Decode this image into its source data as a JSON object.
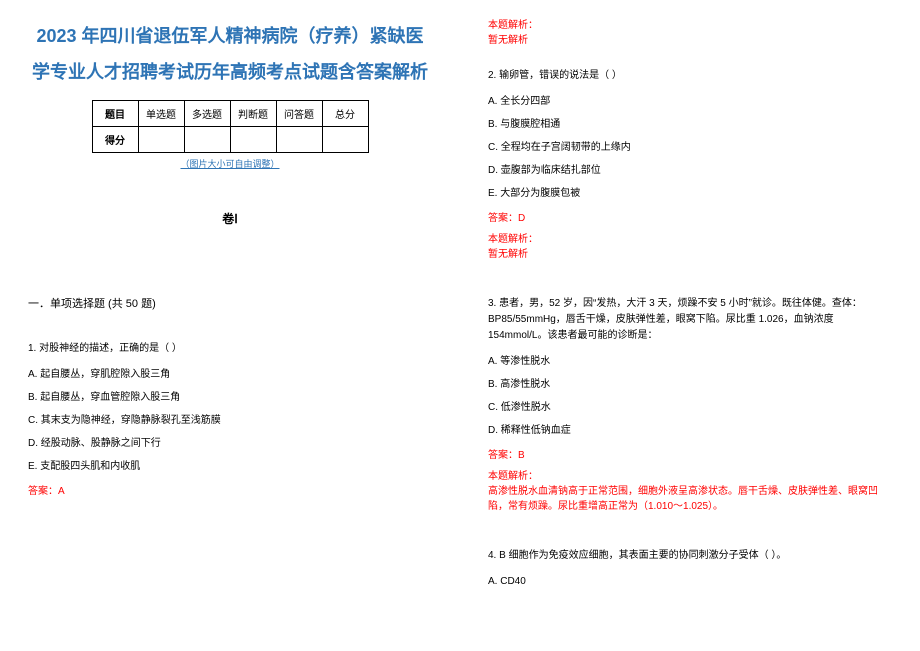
{
  "doc": {
    "title": "2023 年四川省退伍军人精神病院（疗养）紧缺医学专业人才招聘考试历年高频考点试题含答案解析",
    "score_table": {
      "headers": [
        "题目",
        "单选题",
        "多选题",
        "判断题",
        "问答题",
        "总分"
      ],
      "row_label": "得分"
    },
    "img_note": "（图片大小可自由调整）",
    "juan": "卷Ⅰ",
    "section1": "一．单项选择题 (共 50 题)",
    "colors": {
      "title": "#2e74b5",
      "answer": "#ff0000",
      "text": "#000000",
      "background": "#ffffff",
      "table_border": "#000000"
    },
    "fontsizes": {
      "title": 18,
      "table": 10,
      "img_note": 9,
      "juan": 12,
      "section": 11,
      "body": 10
    }
  },
  "questions": [
    {
      "num": "1",
      "stem": "1. 对股神经的描述，正确的是（ ）",
      "opts": [
        "A. 起自腰丛，穿肌腔隙入股三角",
        "B. 起自腰丛，穿血管腔隙入股三角",
        "C. 其末支为隐神经，穿隐静脉裂孔至浅筋膜",
        "D. 经股动脉、股静脉之间下行",
        "E. 支配股四头肌和内收肌"
      ],
      "answer": "答案：A",
      "analysis_label": "本题解析：",
      "analysis_body": "暂无解析"
    },
    {
      "num": "2",
      "stem": "2. 输卵管，错误的说法是（ ）",
      "opts": [
        "A. 全长分四部",
        "B. 与腹膜腔相通",
        "C. 全程均在子宫阔韧带的上缘内",
        "D. 壶腹部为临床结扎部位",
        "E. 大部分为腹膜包被"
      ],
      "answer": "答案：D",
      "analysis_label": "本题解析：",
      "analysis_body": "暂无解析"
    },
    {
      "num": "3",
      "stem": "3. 患者，男，52 岁，因“发热，大汗 3 天，烦躁不安 5 小时”就诊。既往体健。查体：BP85/55mmHg，唇舌干燥，皮肤弹性差，眼窝下陷。尿比重 1.026，血钠浓度 154mmol/L。该患者最可能的诊断是：",
      "opts": [
        "A. 等渗性脱水",
        "B. 高渗性脱水",
        "C. 低渗性脱水",
        "D. 稀释性低钠血症"
      ],
      "answer": "答案：B",
      "analysis_label": "本题解析：",
      "analysis_body": "高渗性脱水血清钠高于正常范围，细胞外液呈高渗状态。唇干舌燥、皮肤弹性差、眼窝凹陷，常有烦躁。尿比重增高正常为（1.010～1.025）。"
    },
    {
      "num": "4",
      "stem": "4.  B 细胞作为免疫效应细胞，其表面主要的协同刺激分子受体（ ）。",
      "opts": [
        "A. CD40"
      ],
      "answer": "",
      "analysis_label": "",
      "analysis_body": ""
    }
  ]
}
